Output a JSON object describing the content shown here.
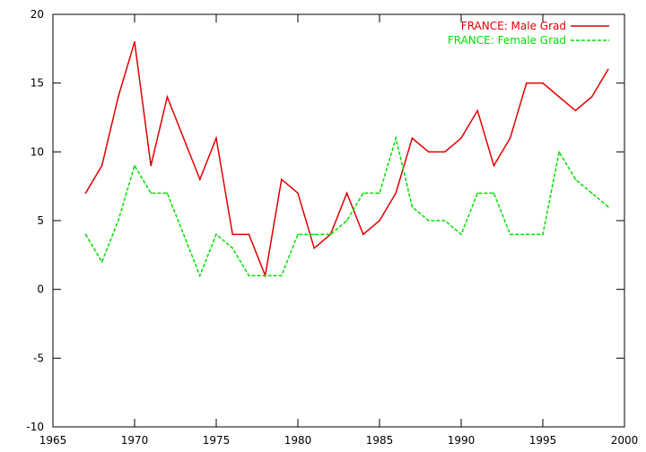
{
  "chart_data": {
    "type": "line",
    "title": "",
    "xlabel": "",
    "ylabel": "",
    "xlim": [
      1965,
      2000
    ],
    "ylim": [
      -10,
      20
    ],
    "xticks": [
      1965,
      1970,
      1975,
      1980,
      1985,
      1990,
      1995,
      2000
    ],
    "yticks": [
      -10,
      -5,
      0,
      5,
      10,
      15,
      20
    ],
    "grid": false,
    "legend_position": "top-right",
    "x": [
      1967,
      1968,
      1969,
      1970,
      1971,
      1972,
      1973,
      1974,
      1975,
      1976,
      1977,
      1978,
      1979,
      1980,
      1981,
      1982,
      1983,
      1984,
      1985,
      1986,
      1987,
      1988,
      1989,
      1990,
      1991,
      1992,
      1993,
      1994,
      1995,
      1996,
      1997,
      1998,
      1999
    ],
    "series": [
      {
        "name": "FRANCE: Male Grad",
        "color": "#e00000",
        "dash": "solid",
        "values": [
          7,
          9,
          14,
          18,
          9,
          14,
          11,
          8,
          11,
          4,
          4,
          1,
          8,
          7,
          3,
          4,
          7,
          4,
          5,
          7,
          11,
          10,
          10,
          11,
          13,
          9,
          11,
          15,
          15,
          14,
          13,
          14,
          16
        ]
      },
      {
        "name": "FRANCE: Female Grad",
        "color": "#00e000",
        "dash": "dashed",
        "values": [
          4,
          2,
          5,
          9,
          7,
          7,
          4,
          1,
          4,
          3,
          1,
          1,
          1,
          4,
          4,
          4,
          5,
          7,
          7,
          11,
          6,
          5,
          5,
          4,
          7,
          7,
          4,
          4,
          4,
          10,
          8,
          7,
          6
        ]
      }
    ]
  }
}
